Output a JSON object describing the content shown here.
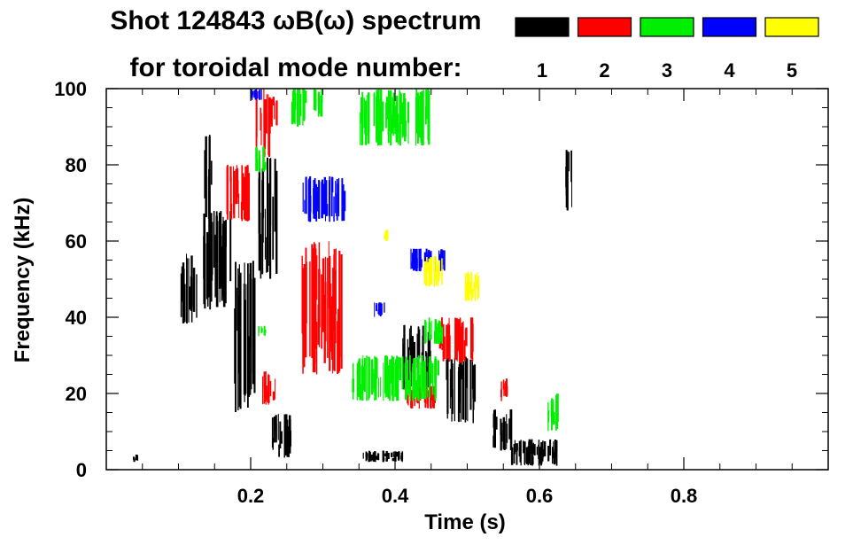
{
  "chart_data": {
    "type": "heatmap",
    "title_line1": "Shot 124843 ωB(ω) spectrum",
    "title_line2": "for toroidal mode number:",
    "xlabel": "Time (s)",
    "ylabel": "Frequency (kHz)",
    "xlim": [
      0.0,
      1.0
    ],
    "ylim": [
      0,
      100
    ],
    "xticks": [
      {
        "value": 0.2,
        "label": "0.2"
      },
      {
        "value": 0.4,
        "label": "0.4"
      },
      {
        "value": 0.6,
        "label": "0.6"
      },
      {
        "value": 0.8,
        "label": "0.8"
      }
    ],
    "yticks": [
      {
        "value": 0,
        "label": "0"
      },
      {
        "value": 20,
        "label": "20"
      },
      {
        "value": 40,
        "label": "40"
      },
      {
        "value": 60,
        "label": "60"
      },
      {
        "value": 80,
        "label": "80"
      },
      {
        "value": 100,
        "label": "100"
      }
    ],
    "legend": [
      {
        "mode": "1",
        "color": "#000000"
      },
      {
        "mode": "2",
        "color": "#ff0000"
      },
      {
        "mode": "3",
        "color": "#00ee00"
      },
      {
        "mode": "4",
        "color": "#0000ff"
      },
      {
        "mode": "5",
        "color": "#ffff00"
      }
    ],
    "series": [
      {
        "name": "mode 1",
        "mode": "1",
        "color": "#000000",
        "regions": [
          {
            "t": [
              0.1,
              0.125
            ],
            "f": [
              38,
              57
            ]
          },
          {
            "t": [
              0.13,
              0.175
            ],
            "f": [
              42,
              68
            ]
          },
          {
            "t": [
              0.135,
              0.145
            ],
            "f": [
              65,
              88
            ]
          },
          {
            "t": [
              0.175,
              0.205
            ],
            "f": [
              15,
              55
            ]
          },
          {
            "t": [
              0.21,
              0.235
            ],
            "f": [
              50,
              82
            ]
          },
          {
            "t": [
              0.225,
              0.255
            ],
            "f": [
              3,
              15
            ]
          },
          {
            "t": [
              0.355,
              0.41
            ],
            "f": [
              2,
              5
            ]
          },
          {
            "t": [
              0.41,
              0.45
            ],
            "f": [
              20,
              38
            ]
          },
          {
            "t": [
              0.47,
              0.51
            ],
            "f": [
              12,
              30
            ]
          },
          {
            "t": [
              0.535,
              0.56
            ],
            "f": [
              5,
              16
            ]
          },
          {
            "t": [
              0.56,
              0.625
            ],
            "f": [
              1,
              8
            ]
          },
          {
            "t": [
              0.635,
              0.645
            ],
            "f": [
              68,
              84
            ]
          },
          {
            "t": [
              0.035,
              0.045
            ],
            "f": [
              2,
              4
            ]
          }
        ]
      },
      {
        "name": "mode 2",
        "mode": "2",
        "color": "#ff0000",
        "regions": [
          {
            "t": [
              0.165,
              0.2
            ],
            "f": [
              65,
              80
            ]
          },
          {
            "t": [
              0.205,
              0.225
            ],
            "f": [
              82,
              100
            ]
          },
          {
            "t": [
              0.265,
              0.325
            ],
            "f": [
              25,
              60
            ]
          },
          {
            "t": [
              0.215,
              0.235
            ],
            "f": [
              17,
              26
            ]
          },
          {
            "t": [
              0.415,
              0.455
            ],
            "f": [
              16,
              22
            ]
          },
          {
            "t": [
              0.46,
              0.51
            ],
            "f": [
              28,
              40
            ]
          },
          {
            "t": [
              0.225,
              0.235
            ],
            "f": [
              90,
              98
            ]
          },
          {
            "t": [
              0.545,
              0.555
            ],
            "f": [
              18,
              24
            ]
          }
        ]
      },
      {
        "name": "mode 3",
        "mode": "3",
        "color": "#00ee00",
        "regions": [
          {
            "t": [
              0.255,
              0.275
            ],
            "f": [
              90,
              100
            ]
          },
          {
            "t": [
              0.285,
              0.3
            ],
            "f": [
              92,
              100
            ]
          },
          {
            "t": [
              0.205,
              0.22
            ],
            "f": [
              78,
              85
            ]
          },
          {
            "t": [
              0.34,
              0.46
            ],
            "f": [
              18,
              30
            ]
          },
          {
            "t": [
              0.44,
              0.465
            ],
            "f": [
              33,
              40
            ]
          },
          {
            "t": [
              0.61,
              0.625
            ],
            "f": [
              10,
              20
            ]
          },
          {
            "t": [
              0.35,
              0.45
            ],
            "f": [
              85,
              100
            ]
          },
          {
            "t": [
              0.21,
              0.22
            ],
            "f": [
              35,
              38
            ]
          }
        ]
      },
      {
        "name": "mode 4",
        "mode": "4",
        "color": "#0000ff",
        "regions": [
          {
            "t": [
              0.27,
              0.33
            ],
            "f": [
              65,
              77
            ]
          },
          {
            "t": [
              0.42,
              0.47
            ],
            "f": [
              52,
              58
            ]
          },
          {
            "t": [
              0.37,
              0.385
            ],
            "f": [
              40,
              44
            ]
          },
          {
            "t": [
              0.2,
              0.215
            ],
            "f": [
              97,
              100
            ]
          }
        ]
      },
      {
        "name": "mode 5",
        "mode": "5",
        "color": "#ffff00",
        "regions": [
          {
            "t": [
              0.44,
              0.465
            ],
            "f": [
              48,
              56
            ]
          },
          {
            "t": [
              0.495,
              0.515
            ],
            "f": [
              44,
              52
            ]
          },
          {
            "t": [
              0.38,
              0.39
            ],
            "f": [
              60,
              63
            ]
          }
        ]
      }
    ]
  }
}
